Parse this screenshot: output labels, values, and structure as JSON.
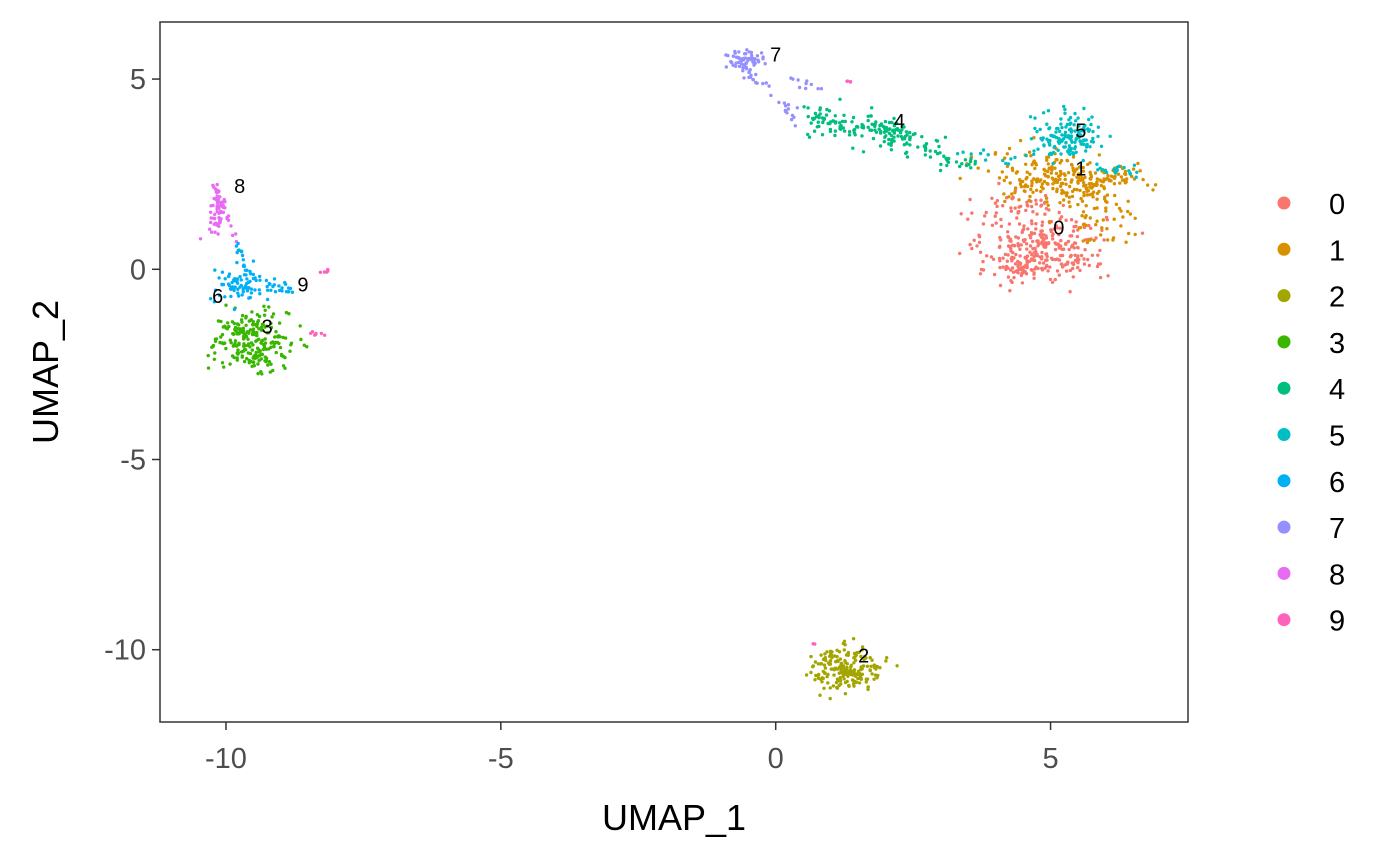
{
  "chart_data": {
    "type": "scatter",
    "xlabel": "UMAP_1",
    "ylabel": "UMAP_2",
    "xlim": [
      -11.2,
      7.5
    ],
    "ylim": [
      -11.9,
      6.5
    ],
    "xticks": [
      -10,
      -5,
      0,
      5
    ],
    "yticks": [
      -10,
      -5,
      0,
      5
    ],
    "xtick_labels": [
      "-10",
      "-5",
      "0",
      "5"
    ],
    "ytick_labels": [
      "-10",
      "-5",
      "0",
      "5"
    ],
    "grid": false,
    "legend_position": "right",
    "clusters": [
      {
        "name": "0",
        "color": "#F8766D",
        "label_pos": [
          5.15,
          1.05
        ]
      },
      {
        "name": "1",
        "color": "#D89000",
        "label_pos": [
          5.55,
          2.6
        ]
      },
      {
        "name": "2",
        "color": "#A3A500",
        "label_pos": [
          1.6,
          -10.2
        ]
      },
      {
        "name": "3",
        "color": "#39B600",
        "label_pos": [
          -9.25,
          -1.55
        ]
      },
      {
        "name": "4",
        "color": "#00BF7D",
        "label_pos": [
          2.25,
          3.85
        ]
      },
      {
        "name": "5",
        "color": "#00BFC4",
        "label_pos": [
          5.55,
          3.6
        ]
      },
      {
        "name": "6",
        "color": "#00B0F6",
        "label_pos": [
          -10.15,
          -0.75
        ]
      },
      {
        "name": "7",
        "color": "#9590FF",
        "label_pos": [
          0.0,
          5.6
        ]
      },
      {
        "name": "8",
        "color": "#E76BF3",
        "label_pos": [
          -9.75,
          2.15
        ]
      },
      {
        "name": "9",
        "color": "#FF62BC",
        "label_pos": [
          -8.6,
          -0.45
        ]
      }
    ],
    "legend": [
      "0",
      "1",
      "2",
      "3",
      "4",
      "5",
      "6",
      "7",
      "8",
      "9"
    ]
  }
}
